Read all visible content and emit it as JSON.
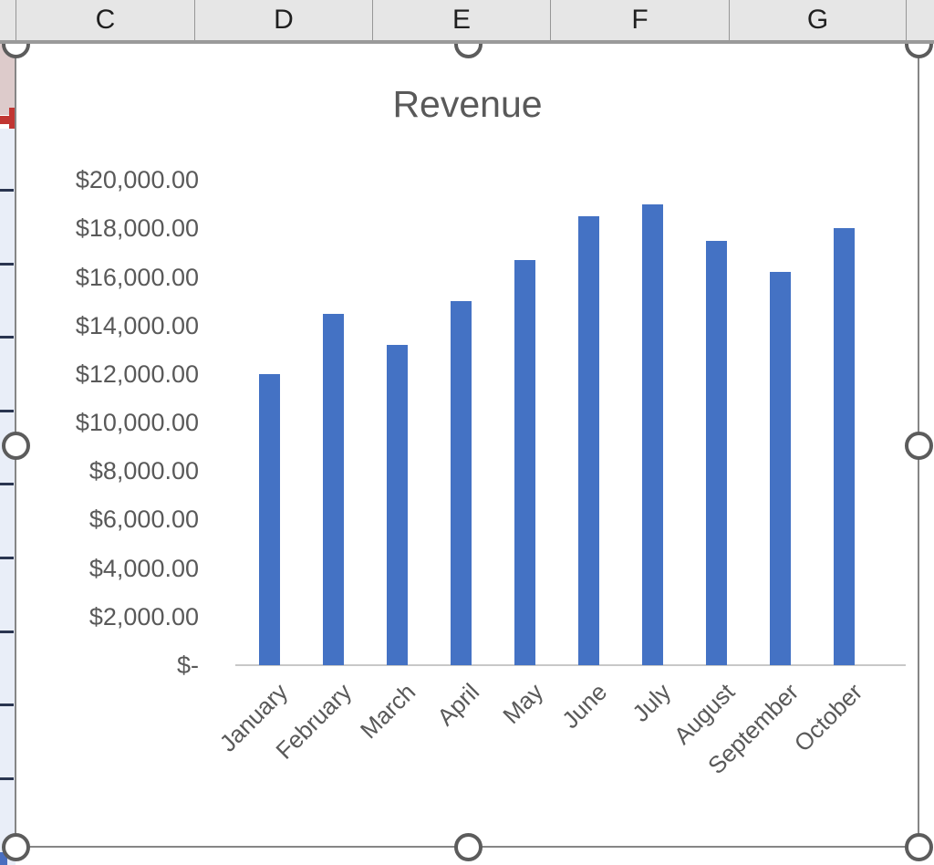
{
  "spreadsheet": {
    "column_headers": [
      "C",
      "D",
      "E",
      "F",
      "G"
    ]
  },
  "chart_data": {
    "type": "bar",
    "title": "Revenue",
    "categories": [
      "January",
      "February",
      "March",
      "April",
      "May",
      "June",
      "July",
      "August",
      "September",
      "October"
    ],
    "values": [
      12000,
      14500,
      13200,
      15000,
      16700,
      18500,
      19000,
      17500,
      16200,
      18000
    ],
    "series_count": 1,
    "xlabel": "",
    "ylabel": "",
    "ylim": [
      0,
      20000
    ],
    "y_tick_step": 2000,
    "y_tick_labels_desc": [
      "$20,000.00",
      "$18,000.00",
      "$16,000.00",
      "$14,000.00",
      "$12,000.00",
      "$10,000.00",
      "$8,000.00",
      "$6,000.00",
      "$4,000.00",
      "$2,000.00",
      "$-"
    ],
    "x_label_rotation_deg": 45,
    "grid": "off",
    "legend": "none"
  },
  "selection": {
    "chart_selected": true,
    "handles": [
      "top-left",
      "top-center",
      "top-right",
      "mid-left",
      "mid-right",
      "bottom-left",
      "bottom-center",
      "bottom-right"
    ]
  },
  "colors": {
    "bar_fill": "#4472C4",
    "chart_text": "#595959",
    "axis_line": "#C8C8C8",
    "header_bg": "#E6E6E6",
    "header_text": "#1F1F1F",
    "header_divider": "#969696",
    "chart_border": "#868686",
    "handle_ring": "#5C5C5C",
    "sliver_blue": "#E9EEF8",
    "sliver_pink": "#DDCBCB",
    "sliver_red": "#C13632",
    "sliver_tick": "#2A3550",
    "sliver_bottom_blue": "#4A6FBF"
  }
}
